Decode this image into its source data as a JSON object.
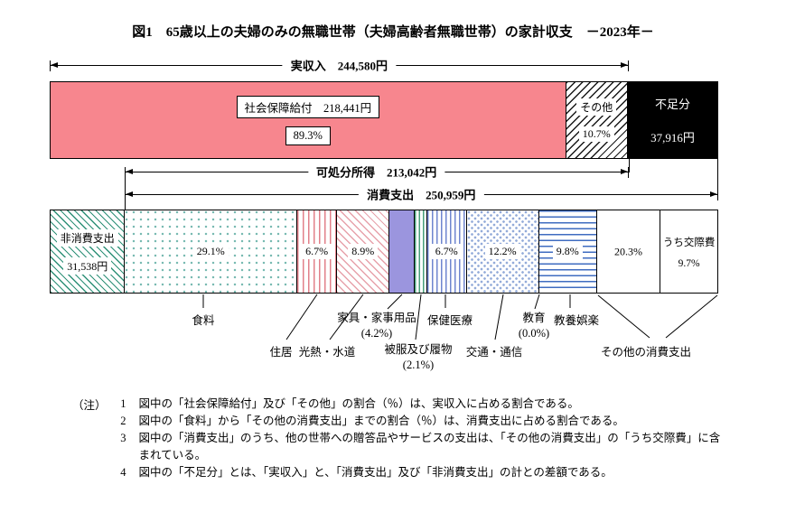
{
  "figure": {
    "title": "図1　65歳以上の夫婦のみの無職世帯（夫婦高齢者無職世帯）の家計収支　－2023年－"
  },
  "chart_data": {
    "type": "stacked-bar-balance",
    "unit": "円",
    "totals": {
      "actual_income_yen": 244580,
      "deficit_yen": 37916,
      "disposable_income_yen": 213042,
      "consumption_yen": 250959,
      "non_consumption_yen": 31538
    },
    "arrows": {
      "actual_income": "実収入　244,580円",
      "disposable_income": "可処分所得　213,042円",
      "consumption": "消費支出　250,959円"
    },
    "income_bar": {
      "social_security": {
        "label": "社会保障給付　218,441円",
        "pct": "89.3%",
        "value_yen": 218441
      },
      "other_income": {
        "label": "その他",
        "pct": "10.7%"
      },
      "deficit": {
        "label": "不足分",
        "value": "37,916円"
      }
    },
    "expense_bar": {
      "non_consumption": {
        "label": "非消費支出",
        "value": "31,538円"
      },
      "segments": [
        {
          "key": "food",
          "name": "食料",
          "pct": 29.1,
          "bar_label": "29.1%",
          "callout": "食料",
          "pattern": "dots-teal"
        },
        {
          "key": "housing",
          "name": "住居",
          "pct": 6.7,
          "bar_label": "6.7%",
          "callout": "住居",
          "pattern": "vstripe-red"
        },
        {
          "key": "utilities",
          "name": "光熱・水道",
          "pct": 8.9,
          "bar_label": "8.9%",
          "callout": "光熱・水道",
          "pattern": "diag-red"
        },
        {
          "key": "furniture",
          "name": "家具・家事用品",
          "pct": 4.2,
          "callout": "家具・家事用品",
          "callout2": "(4.2%)",
          "pattern": "solid-purple"
        },
        {
          "key": "clothing",
          "name": "被服及び履物",
          "pct": 2.1,
          "callout": "被服及び履物",
          "callout2": "(2.1%)",
          "pattern": "vstripe-green"
        },
        {
          "key": "health",
          "name": "保健医療",
          "pct": 6.7,
          "bar_label": "6.7%",
          "callout": "保健医療",
          "pattern": "vstripe-blue"
        },
        {
          "key": "transport",
          "name": "交通・通信",
          "pct": 12.2,
          "bar_label": "12.2%",
          "callout": "交通・通信",
          "pattern": "dots-blue"
        },
        {
          "key": "education",
          "name": "教育",
          "pct": 0.0,
          "callout": "教育",
          "callout2": "(0.0%)",
          "pattern": "none"
        },
        {
          "key": "recreation",
          "name": "教養娯楽",
          "pct": 9.8,
          "bar_label": "9.8%",
          "callout": "教養娯楽",
          "pattern": "hstripe-blue"
        },
        {
          "key": "other_consumption",
          "name": "その他の消費支出",
          "pct": 20.3,
          "bar_label": "20.3%",
          "callout": "その他の消費支出",
          "pattern": "white"
        }
      ],
      "social_expenses_box": {
        "label": "うち交際費",
        "pct_label": "9.7%",
        "pct": 9.7
      }
    }
  },
  "notes": {
    "prefix": "（注）",
    "items": [
      {
        "num": "1",
        "text": "図中の「社会保障給付」及び「その他」の割合（％）は、実収入に占める割合である。"
      },
      {
        "num": "2",
        "text": "図中の「食料」から「その他の消費支出」までの割合（％）は、消費支出に占める割合である。"
      },
      {
        "num": "3",
        "text": "図中の「消費支出」のうち、他の世帯への贈答品やサービスの支出は、「その他の消費支出」の「うち交際費」に含まれている。"
      },
      {
        "num": "4",
        "text": "図中の「不足分」とは、「実収入」と、「消費支出」及び「非消費支出」の計との差額である。"
      }
    ]
  },
  "colors": {
    "pink": "#f7868e",
    "purple": "#9b95de",
    "teal": "#2f9178",
    "red_stripe": "#e2808a",
    "green_stripe": "#47a07a",
    "blue_stripe": "#6f86cf",
    "blue_hstripe": "#3f6cc0",
    "black": "#000000"
  }
}
